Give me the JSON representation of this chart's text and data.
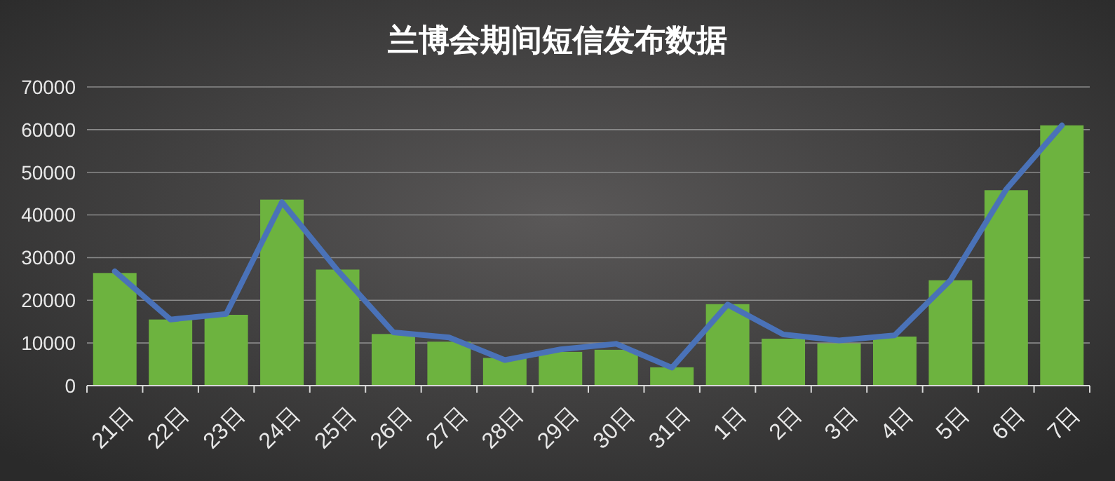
{
  "chart_data": {
    "type": "bar",
    "title": "兰博会期间短信发布数据",
    "categories": [
      "21日",
      "22日",
      "23日",
      "24日",
      "25日",
      "26日",
      "27日",
      "28日",
      "29日",
      "30日",
      "31日",
      "1日",
      "2日",
      "3日",
      "4日",
      "5日",
      "6日",
      "7日"
    ],
    "series": [
      {
        "color": "#6db33f",
        "values": [
          26400,
          15500,
          16600,
          43600,
          27200,
          12100,
          10300,
          6500,
          7900,
          8400,
          4300,
          19100,
          11000,
          9900,
          11500,
          24700,
          45800,
          61000
        ]
      },
      {
        "type": "line",
        "color": "#4a72b8",
        "values": [
          26800,
          15500,
          16800,
          43000,
          27000,
          12500,
          11300,
          6000,
          8500,
          9800,
          4200,
          19000,
          12000,
          10600,
          11800,
          24700,
          46000,
          61000
        ]
      }
    ],
    "ylim": [
      0,
      70000
    ],
    "yticks": [
      0,
      10000,
      20000,
      30000,
      40000,
      50000,
      60000,
      70000
    ],
    "grid": "y",
    "marker": "none",
    "line_style": "solid"
  }
}
